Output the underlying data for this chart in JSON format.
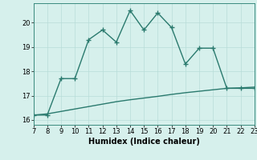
{
  "xlabel": "Humidex (Indice chaleur)",
  "x": [
    7,
    8,
    9,
    10,
    11,
    12,
    13,
    14,
    15,
    16,
    17,
    18,
    19,
    20,
    21,
    22,
    23
  ],
  "y_line1": [
    16.2,
    16.2,
    17.7,
    17.7,
    19.3,
    19.7,
    19.2,
    20.5,
    19.7,
    20.4,
    19.8,
    18.3,
    18.95,
    18.95,
    17.3,
    17.3,
    17.3
  ],
  "y_line2": [
    16.2,
    16.25,
    16.35,
    16.45,
    16.55,
    16.65,
    16.75,
    16.83,
    16.9,
    16.97,
    17.05,
    17.12,
    17.18,
    17.24,
    17.3,
    17.32,
    17.35
  ],
  "line_color": "#2a7a6e",
  "bg_color": "#d6f0ec",
  "grid_color": "#b8ddd8",
  "xlim": [
    7,
    23
  ],
  "ylim": [
    15.8,
    20.8
  ],
  "yticks": [
    16,
    17,
    18,
    19,
    20
  ],
  "xticks": [
    7,
    8,
    9,
    10,
    11,
    12,
    13,
    14,
    15,
    16,
    17,
    18,
    19,
    20,
    21,
    22,
    23
  ],
  "marker": "+",
  "markersize": 4,
  "linewidth": 1.0,
  "label_fontsize": 7,
  "tick_fontsize": 6
}
